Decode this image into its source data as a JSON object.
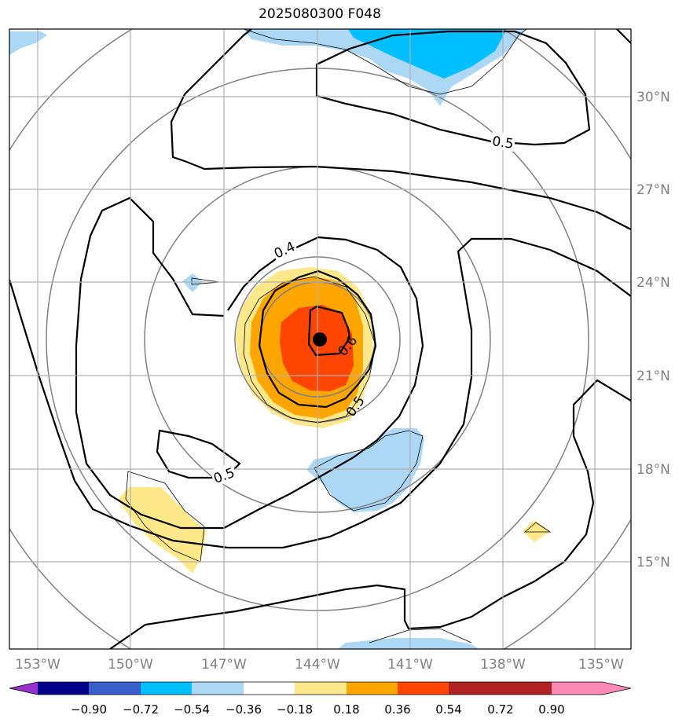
{
  "title": "2025080300 F048",
  "map": {
    "lon_labels": [
      "153°W",
      "150°W",
      "147°W",
      "144°W",
      "141°W",
      "138°W",
      "135°W"
    ],
    "lat_labels": [
      "30°N",
      "27°N",
      "24°N",
      "21°N",
      "18°N",
      "15°N"
    ],
    "label_color": "#808080",
    "grid_color": "#b0b0b0",
    "storm_center": {
      "lon": "144°W",
      "lat": "22.1°N"
    },
    "contour_labels": [
      {
        "text": "0.5",
        "rotate": 8
      },
      {
        "text": "0.4",
        "rotate": -25
      },
      {
        "text": "0.6",
        "rotate": -50
      },
      {
        "text": "0.5",
        "rotate": -55
      },
      {
        "text": "0.5",
        "rotate": -20
      }
    ]
  },
  "colorbar": {
    "tick_labels": [
      "−0.90",
      "−0.72",
      "−0.54",
      "−0.36",
      "−0.18",
      "0.18",
      "0.36",
      "0.54",
      "0.72",
      "0.90"
    ],
    "colors": [
      "#9932cc",
      "#00008b",
      "#3a5fcd",
      "#00bfff",
      "#add8f5",
      "#ffffff",
      "#ffe88a",
      "#ffa500",
      "#ff4500",
      "#b22222",
      "#ff88b4"
    ]
  }
}
